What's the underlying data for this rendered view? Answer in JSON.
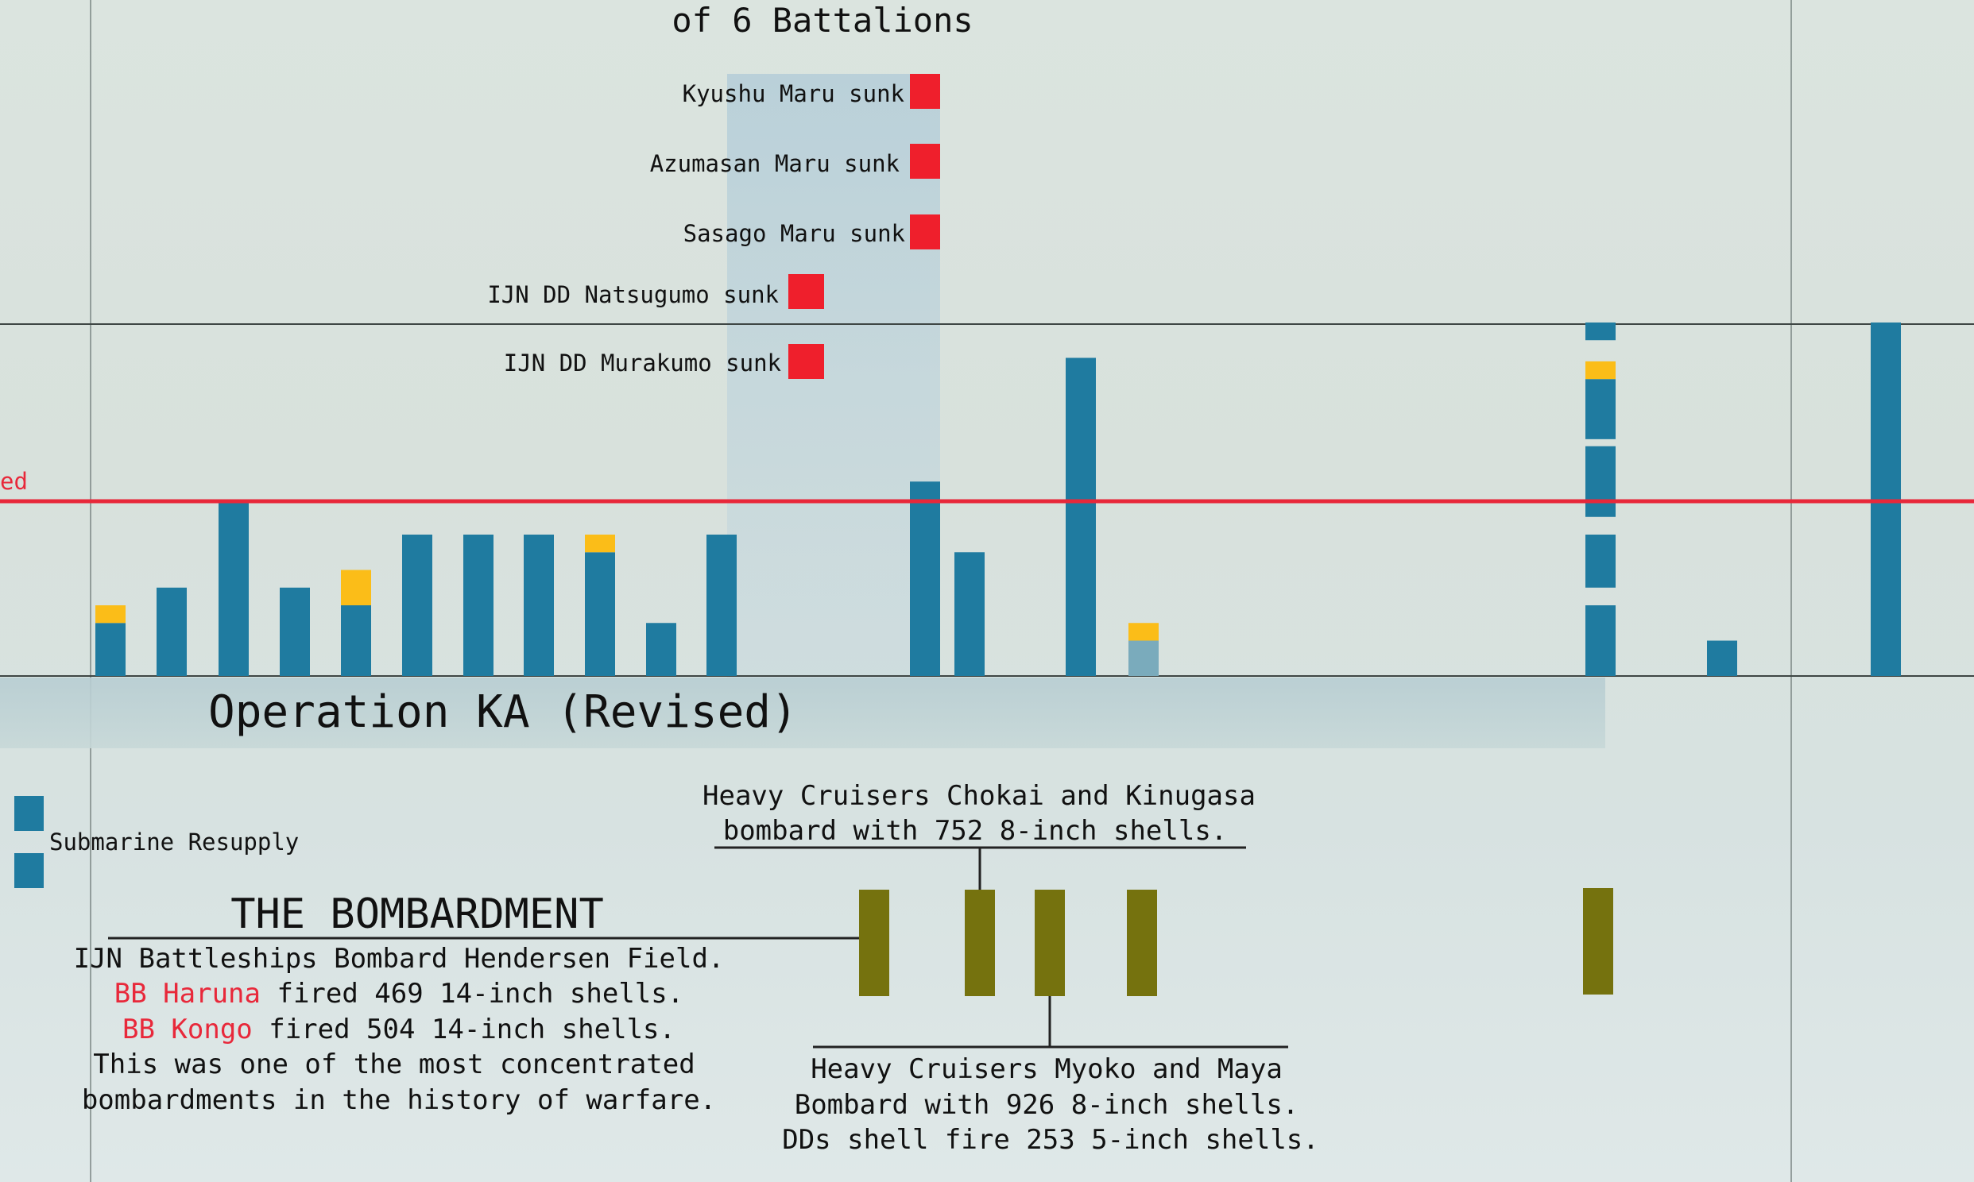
{
  "chart_data": {
    "type": "bar",
    "title_fragment": "of 6 Battalions",
    "threshold_label_fragment": "ed",
    "operation_label": "Operation KA (Revised)",
    "colors": {
      "bar": "#1f7ba0",
      "bar_light": "#7aabbc",
      "yellow": "#fbbd18",
      "red": "#ef1f2c",
      "olive": "#75720e",
      "threshold": "#e8283a"
    },
    "bars": [
      {
        "blue": 1.5,
        "yellow": 0.5
      },
      {
        "blue": 2.5
      },
      {
        "blue": 5
      },
      {
        "blue": 2.5
      },
      {
        "blue": 2,
        "yellow": 1
      },
      {
        "blue": 4
      },
      {
        "blue": 4
      },
      {
        "blue": 4
      },
      {
        "blue": 3.5,
        "yellow": 0.5
      },
      {
        "blue": 1.5
      },
      {
        "blue": 4
      },
      {
        "blue": 5.5
      },
      {
        "blue": 3.5
      },
      {
        "blue": 9
      },
      {
        "blue_light": 1,
        "yellow": 0.5
      },
      {
        "segments": [
          "blue:0-2",
          "blue:2.5-4",
          "blue:4.5-6.5",
          "blue:6.7-8.4",
          "yellow:8.4-8.9",
          "blue:9.5-10"
        ]
      },
      {
        "blue": 1
      },
      {
        "blue": 10
      }
    ],
    "sunk_labels": [
      {
        "text": "Kyushu Maru sunk"
      },
      {
        "text": "Azumasan Maru sunk"
      },
      {
        "text": "Sasago Maru sunk"
      },
      {
        "text": "IJN DD Natsugumo sunk"
      },
      {
        "text": "IJN DD Murakumo sunk"
      }
    ],
    "legend": {
      "label": "Submarine Resupply"
    },
    "bombardment": {
      "heading": "THE BOMBARDMENT",
      "line1": "IJN Battleships Bombard Hendersen Field.",
      "haruna_name": "BB Haruna",
      "haruna_text": " fired 469 14-inch shells.",
      "kongo_name": "BB Kongo",
      "kongo_text": " fired 504 14-inch shells.",
      "line4": "This was one of the most concentrated",
      "line5": "bombardments in the history of warfare."
    },
    "cruisers_top": {
      "line1": "Heavy Cruisers Chokai and Kinugasa",
      "line2": "bombard with 752 8-inch shells."
    },
    "cruisers_bottom": {
      "line1": "Heavy Cruisers Myoko and Maya",
      "line2": "Bombard with 926 8-inch shells.",
      "line3": "DDs shell fire 253 5-inch shells."
    }
  }
}
